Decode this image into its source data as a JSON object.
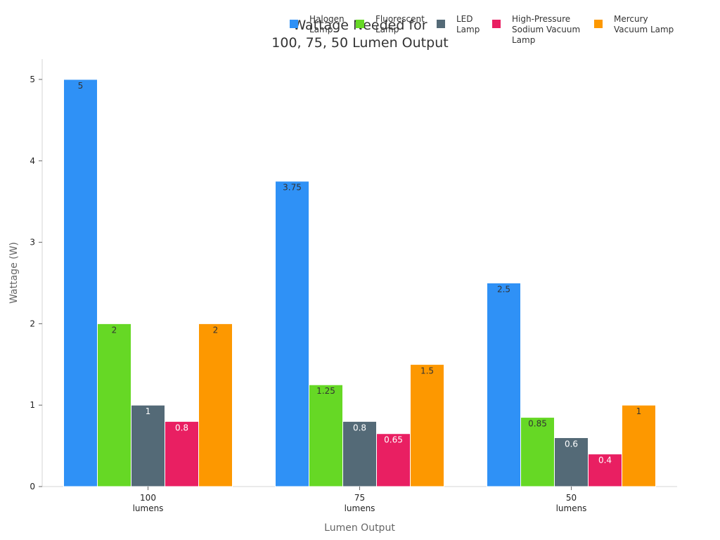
{
  "chart_data": {
    "type": "bar",
    "title_lines": [
      "Wattage Needed for",
      "100, 75, 50 Lumen Output"
    ],
    "xlabel": "Lumen Output",
    "ylabel": "Wattage (W)",
    "ylim": [
      0,
      5.25
    ],
    "yticks": [
      0,
      1,
      2,
      3,
      4,
      5
    ],
    "grid": false,
    "legend_position": "top-right",
    "categories": [
      [
        "100",
        "lumens"
      ],
      [
        "75",
        "lumens"
      ],
      [
        "50",
        "lumens"
      ]
    ],
    "series": [
      {
        "name": [
          "Halogen",
          "Lamp"
        ],
        "color": "#2f91f6",
        "label_color": "#333333",
        "values": [
          5,
          3.75,
          2.5
        ],
        "labels": [
          "5",
          "3.75",
          "2.5"
        ]
      },
      {
        "name": [
          "Fluorescent",
          "Lamp"
        ],
        "color": "#66d825",
        "label_color": "#333333",
        "values": [
          2,
          1.25,
          0.85
        ],
        "labels": [
          "2",
          "1.25",
          "0.85"
        ]
      },
      {
        "name": [
          "LED",
          "Lamp"
        ],
        "color": "#546a77",
        "label_color": "#ffffff",
        "values": [
          1,
          0.8,
          0.6
        ],
        "labels": [
          "1",
          "0.8",
          "0.6"
        ]
      },
      {
        "name": [
          "High-Pressure",
          "Sodium Vacuum",
          "Lamp"
        ],
        "color": "#e91f62",
        "label_color": "#ffffff",
        "values": [
          0.8,
          0.65,
          0.4
        ],
        "labels": [
          "0.8",
          "0.65",
          "0.4"
        ]
      },
      {
        "name": [
          "Mercury",
          "Vacuum Lamp"
        ],
        "color": "#fd9800",
        "label_color": "#333333",
        "values": [
          2,
          1.5,
          1
        ],
        "labels": [
          "2",
          "1.5",
          "1"
        ]
      }
    ]
  }
}
